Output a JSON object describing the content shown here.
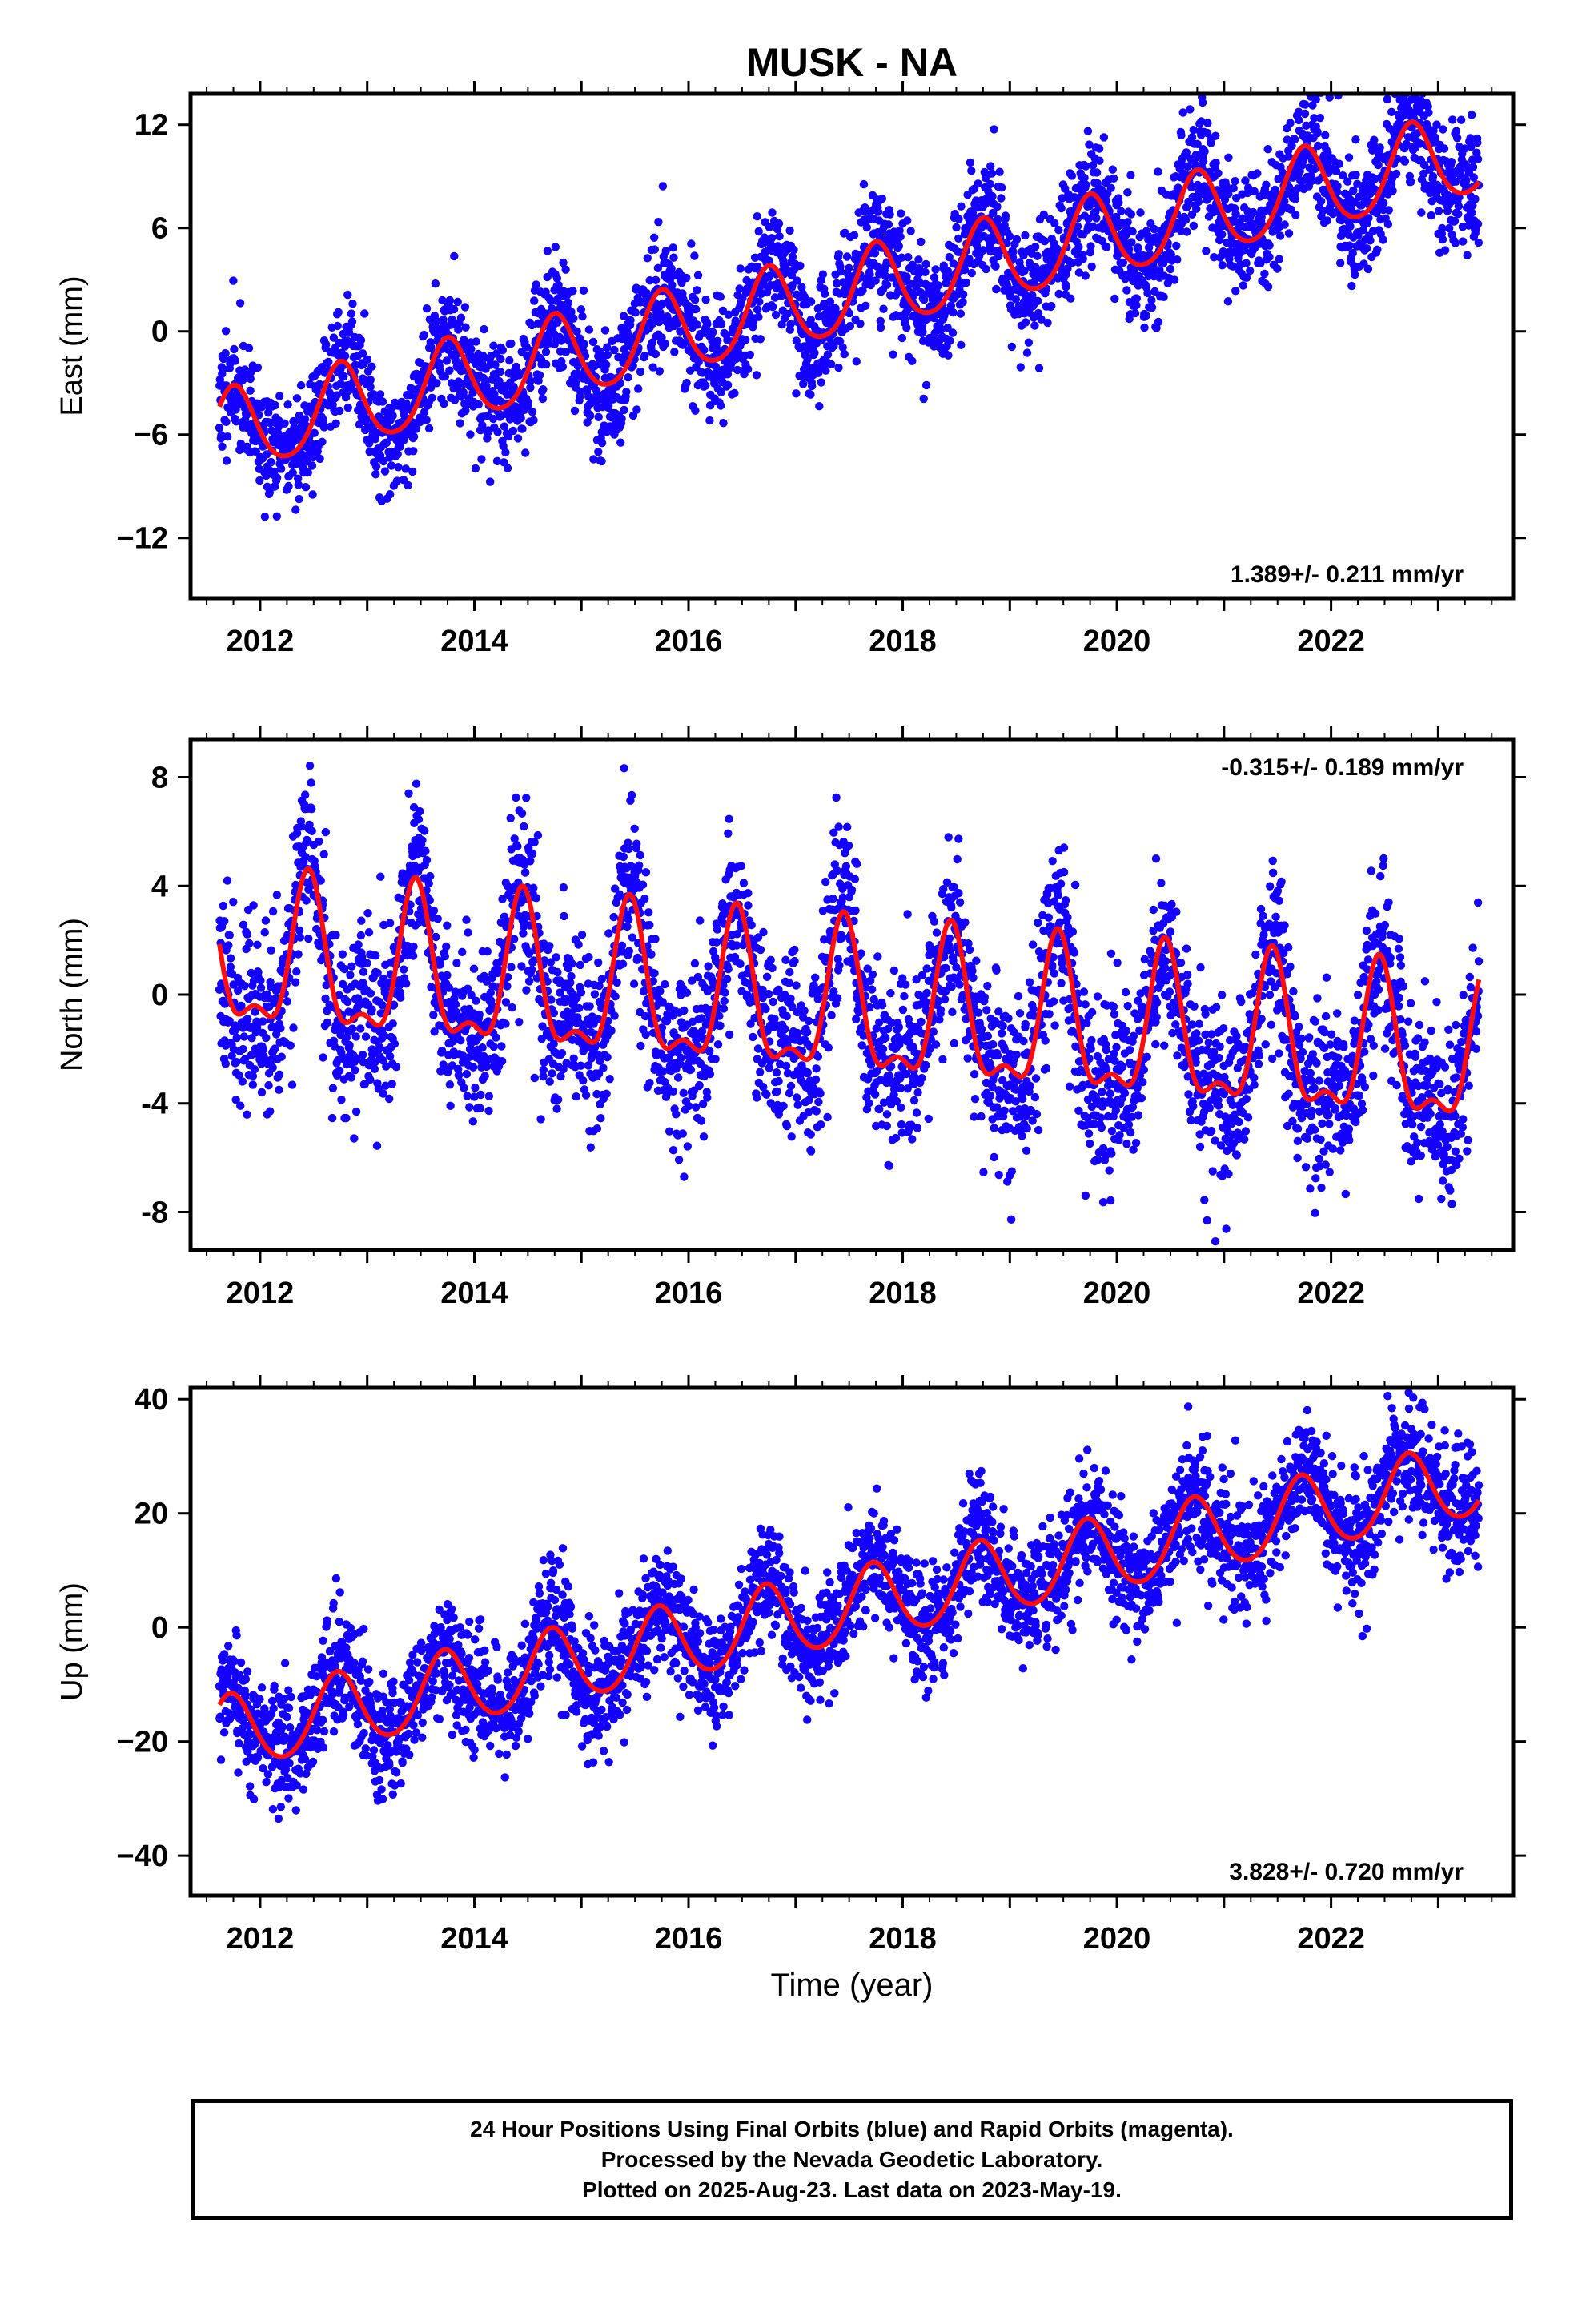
{
  "title": "MUSK - NA",
  "colors": {
    "points": "#1400ff",
    "model": "#ff0d0d",
    "axes": "#000000"
  },
  "chart_data": [
    {
      "type": "scatter",
      "panel": "east",
      "ylabel": "East (mm)",
      "xlabel": "",
      "xlim": [
        2011.35,
        2023.7
      ],
      "ylim": [
        -15.5,
        13.8
      ],
      "yticks": [
        -12,
        -6,
        0,
        6,
        12
      ],
      "yticklabels": [
        "−12",
        "−6",
        "0",
        "6",
        "12"
      ],
      "xticks": [
        2012,
        2014,
        2016,
        2018,
        2020,
        2022
      ],
      "xticklabels": [
        "2012",
        "2014",
        "2016",
        "2018",
        "2020",
        "2022"
      ],
      "rate_label": "1.389+/- 0.211 mm/yr",
      "rate_label_position": "bottom-right",
      "model": {
        "t0": 2011.62,
        "t1": 2023.38,
        "offset": -6.0,
        "rate": 1.389,
        "ref": 2011.62,
        "annual_amp": 2.4,
        "annual_peak": 2011.75,
        "semiannual_amp": 0.3
      },
      "scatter": {
        "count": 3600,
        "noise": 2.0,
        "seed": 11
      },
      "grid": false
    },
    {
      "type": "scatter",
      "panel": "north",
      "ylabel": "North (mm)",
      "xlabel": "",
      "xlim": [
        2011.35,
        2023.7
      ],
      "ylim": [
        -9.4,
        9.4
      ],
      "yticks": [
        -8,
        -4,
        0,
        4,
        8
      ],
      "yticklabels": [
        "-8",
        "-4",
        "0",
        "4",
        "8"
      ],
      "xticks": [
        2012,
        2014,
        2016,
        2018,
        2020,
        2022
      ],
      "xticklabels": [
        "2012",
        "2014",
        "2016",
        "2018",
        "2020",
        "2022"
      ],
      "rate_label": "-0.315+/- 0.189 mm/yr",
      "rate_label_position": "top-right",
      "model": {
        "t0": 2011.62,
        "t1": 2023.38,
        "offset": 1.2,
        "rate": -0.315,
        "ref": 2011.62,
        "annual_amp": 2.6,
        "annual_peak": 2011.45,
        "semiannual_amp": 1.1
      },
      "scatter": {
        "count": 3600,
        "noise": 1.9,
        "seed": 23
      },
      "grid": false
    },
    {
      "type": "scatter",
      "panel": "up",
      "ylabel": "Up (mm)",
      "xlabel": "Time (year)",
      "xlim": [
        2011.35,
        2023.7
      ],
      "ylim": [
        -47,
        42
      ],
      "yticks": [
        -40,
        -20,
        0,
        20,
        40
      ],
      "yticklabels": [
        "−40",
        "−20",
        "0",
        "20",
        "40"
      ],
      "xticks": [
        2012,
        2014,
        2016,
        2018,
        2020,
        2022
      ],
      "xticklabels": [
        "2012",
        "2014",
        "2016",
        "2018",
        "2020",
        "2022"
      ],
      "rate_label": "3.828+/- 0.720 mm/yr",
      "rate_label_position": "bottom-right",
      "model": {
        "t0": 2011.62,
        "t1": 2023.38,
        "offset": -19.0,
        "rate": 3.828,
        "ref": 2011.62,
        "annual_amp": 6.5,
        "annual_peak": 2011.72,
        "semiannual_amp": 0.6
      },
      "scatter": {
        "count": 3600,
        "noise": 6.0,
        "seed": 37
      },
      "grid": false
    }
  ],
  "caption": {
    "line1": "24 Hour Positions Using Final Orbits (blue) and Rapid Orbits (magenta).",
    "line2": "Processed by the Nevada Geodetic Laboratory.",
    "line3": "Plotted on 2025-Aug-23. Last data on 2023-May-19."
  }
}
